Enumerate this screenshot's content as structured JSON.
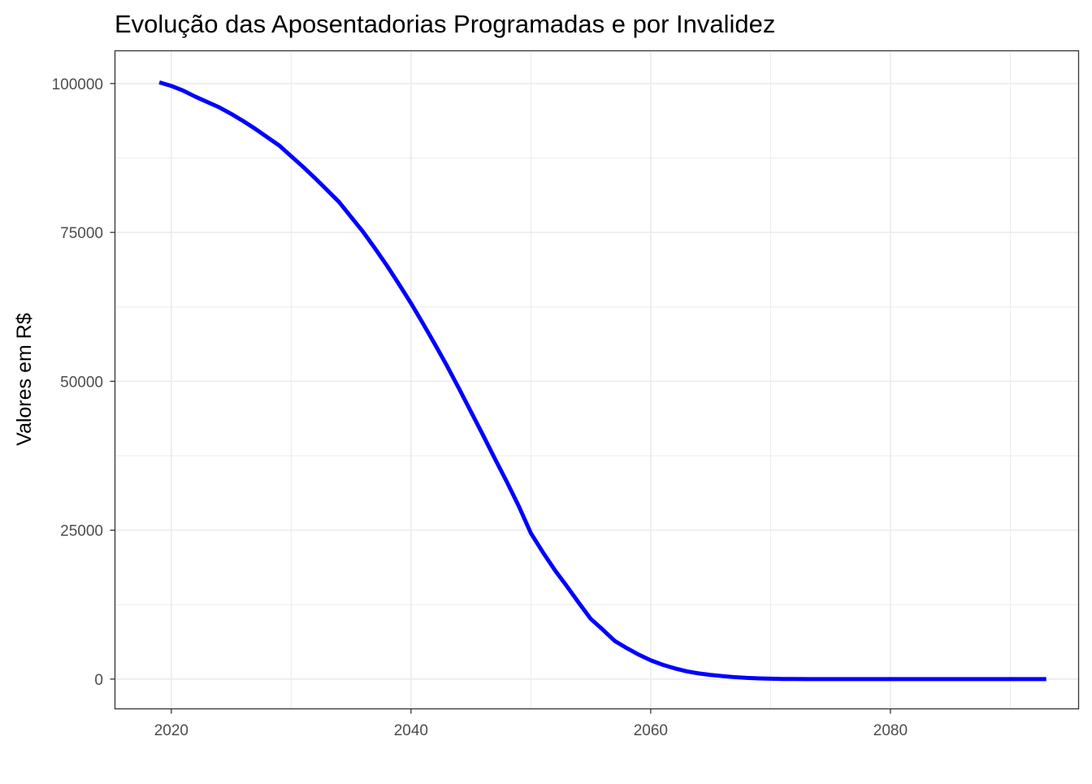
{
  "chart_data": {
    "type": "line",
    "title": "Evolução das Aposentadorias Programadas e por Invalidez",
    "xlabel": "",
    "ylabel": "Valores em R$",
    "xlim": [
      2015.3,
      2095.7
    ],
    "ylim": [
      -5000,
      105500
    ],
    "x_ticks": [
      2020,
      2040,
      2060,
      2080
    ],
    "x_tick_labels": [
      "2020",
      "2040",
      "2060",
      "2080"
    ],
    "y_ticks": [
      0,
      25000,
      50000,
      75000,
      100000
    ],
    "y_tick_labels": [
      "0",
      "25000",
      "50000",
      "75000",
      "100000"
    ],
    "grid": true,
    "series": [
      {
        "color": "#0000ff",
        "x": [
          2019,
          2020,
          2021,
          2022,
          2023,
          2024,
          2025,
          2026,
          2027,
          2028,
          2029,
          2030,
          2031,
          2032,
          2033,
          2034,
          2035,
          2036,
          2037,
          2038,
          2039,
          2040,
          2041,
          2042,
          2043,
          2044,
          2045,
          2046,
          2047,
          2048,
          2049,
          2050,
          2051,
          2052,
          2053,
          2054,
          2055,
          2056,
          2057,
          2058,
          2059,
          2060,
          2061,
          2062,
          2063,
          2064,
          2065,
          2066,
          2067,
          2068,
          2069,
          2070,
          2071,
          2072,
          2073,
          2074,
          2075,
          2076,
          2077,
          2078,
          2079,
          2080,
          2081,
          2082,
          2083,
          2084,
          2085,
          2086,
          2087,
          2088,
          2089,
          2090,
          2091,
          2092,
          2093
        ],
        "values": [
          100200,
          99600,
          98800,
          97800,
          96900,
          96000,
          94900,
          93700,
          92400,
          91000,
          89600,
          87800,
          86000,
          84100,
          82100,
          80100,
          77600,
          75100,
          72300,
          69400,
          66300,
          63100,
          59700,
          56200,
          52600,
          48800,
          44900,
          41000,
          37000,
          33100,
          29000,
          24500,
          21300,
          18300,
          15600,
          12800,
          10100,
          8300,
          6400,
          5200,
          4100,
          3150,
          2400,
          1800,
          1300,
          950,
          700,
          500,
          330,
          200,
          120,
          60,
          20,
          5,
          0,
          0,
          0,
          0,
          0,
          0,
          0,
          0,
          0,
          0,
          0,
          0,
          0,
          0,
          0,
          0,
          0,
          0,
          0,
          0,
          0
        ]
      }
    ]
  },
  "colors": {
    "line": "#0000ff",
    "grid": "#ebebeb",
    "panel_border": "#333333",
    "tick_text": "#4d4d4d",
    "text": "#000000"
  }
}
